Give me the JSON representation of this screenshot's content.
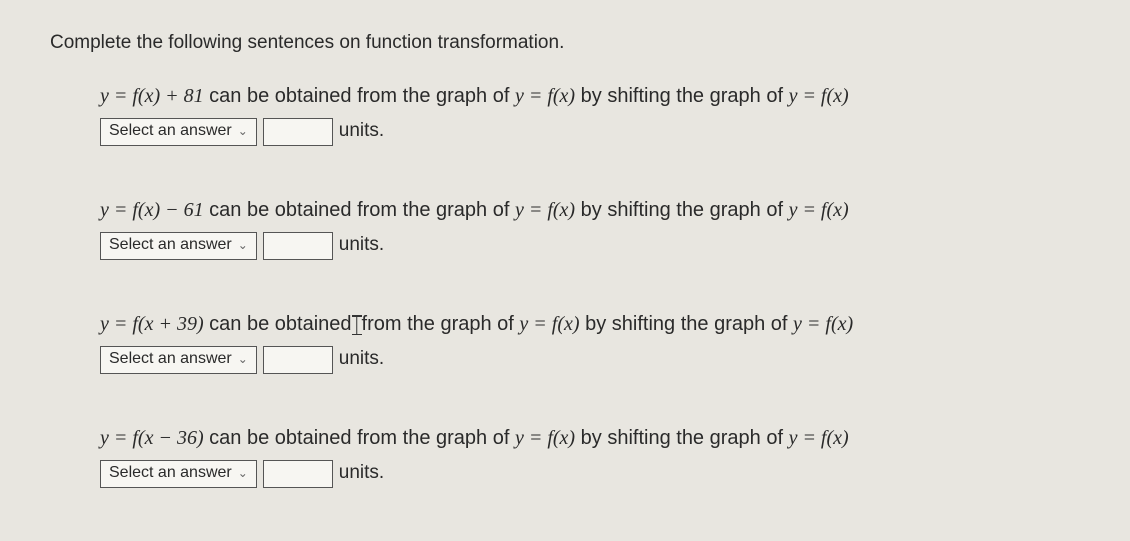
{
  "page": {
    "background_color": "#e8e6e0",
    "text_color": "#2a2a2a",
    "base_fontsize": 19
  },
  "heading": "Complete the following sentences on function transformation.",
  "selectPlaceholder": "Select an answer",
  "unitsLabel": "units.",
  "questions": [
    {
      "lhs": "y = f(x) + 81",
      "rhs_prefix": " can be obtained from the graph of ",
      "rhs_mid": "y = f(x)",
      "rhs_mid2": " by shifting the graph of ",
      "rhs_end": "y = f(x)",
      "showCursor": false
    },
    {
      "lhs": "y = f(x) − 61",
      "rhs_prefix": " can be obtained from the graph of ",
      "rhs_mid": "y = f(x)",
      "rhs_mid2": " by shifting the graph of ",
      "rhs_end": "y = f(x)",
      "showCursor": false
    },
    {
      "lhs": "y = f(x + 39)",
      "rhs_prefix_a": " can be obtained",
      "rhs_prefix_b": "from the graph of ",
      "rhs_mid": "y = f(x)",
      "rhs_mid2": " by shifting the graph of ",
      "rhs_end": "y = f(x)",
      "showCursor": true
    },
    {
      "lhs": "y = f(x − 36)",
      "rhs_prefix": " can be obtained from the graph of ",
      "rhs_mid": "y = f(x)",
      "rhs_mid2": " by shifting the graph of ",
      "rhs_end": "y = f(x)",
      "showCursor": false
    }
  ]
}
